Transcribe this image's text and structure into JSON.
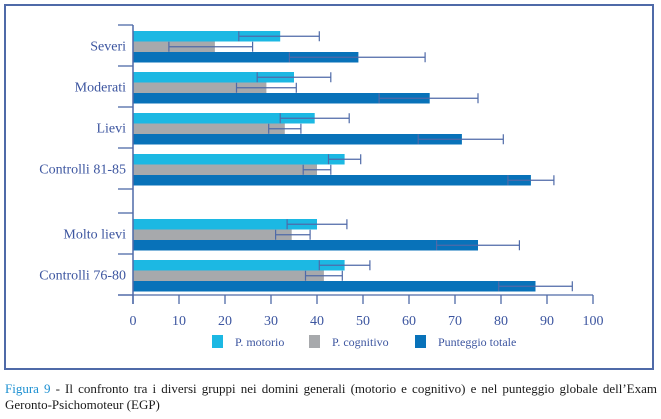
{
  "chart_data": {
    "type": "bar",
    "orientation": "horizontal",
    "title": "",
    "xlabel": "",
    "ylabel": "",
    "xlim": [
      0,
      100
    ],
    "xticks": [
      0,
      10,
      20,
      30,
      40,
      50,
      60,
      70,
      80,
      90,
      100
    ],
    "grid": false,
    "legend_position": "bottom",
    "categories": [
      "Severi",
      "Moderati",
      "Lievi",
      "Controlli 81-85",
      "Molto lievi",
      "Controlli 76-80"
    ],
    "category_groups": [
      [
        "Severi",
        "Moderati",
        "Lievi",
        "Controlli 81-85"
      ],
      [
        "Molto lievi",
        "Controlli 76-80"
      ]
    ],
    "series": [
      {
        "name": "P. motorio",
        "color": "#1cb8e3",
        "values": [
          32,
          35,
          39.5,
          46,
          40,
          46
        ],
        "error_low": [
          23,
          27,
          32,
          42.5,
          33.5,
          40.5
        ],
        "error_high": [
          40.5,
          43,
          47,
          49.5,
          46.5,
          51.5
        ]
      },
      {
        "name": "P. cognitivo",
        "color": "#a7a9ac",
        "values": [
          17.8,
          29,
          33,
          40,
          34.5,
          41.5
        ],
        "error_low": [
          7.8,
          22.5,
          29.5,
          37,
          31,
          37.5
        ],
        "error_high": [
          26,
          35.5,
          36.5,
          43,
          38.5,
          45.5
        ]
      },
      {
        "name": "Punteggio totale",
        "color": "#0872b9",
        "values": [
          49,
          64.5,
          71.5,
          86.5,
          75,
          87.5
        ],
        "error_low": [
          34,
          53.5,
          62,
          81.5,
          66,
          79.5
        ],
        "error_high": [
          63.5,
          75,
          80.5,
          91.5,
          84,
          95.5
        ]
      }
    ]
  },
  "colors": {
    "axis": "#4f6aa8",
    "errorbar": "#4f6aa8",
    "text": "#3d56a0",
    "caption_accent": "#1b8fd1"
  },
  "caption": {
    "figure_label": "Figura 9",
    "text": " - Il confronto tra i diversi gruppi nei domini generali (motorio e cognitivo) e nel punteggio globale dell’Exam Geronto-Psichomoteur (EGP)"
  }
}
